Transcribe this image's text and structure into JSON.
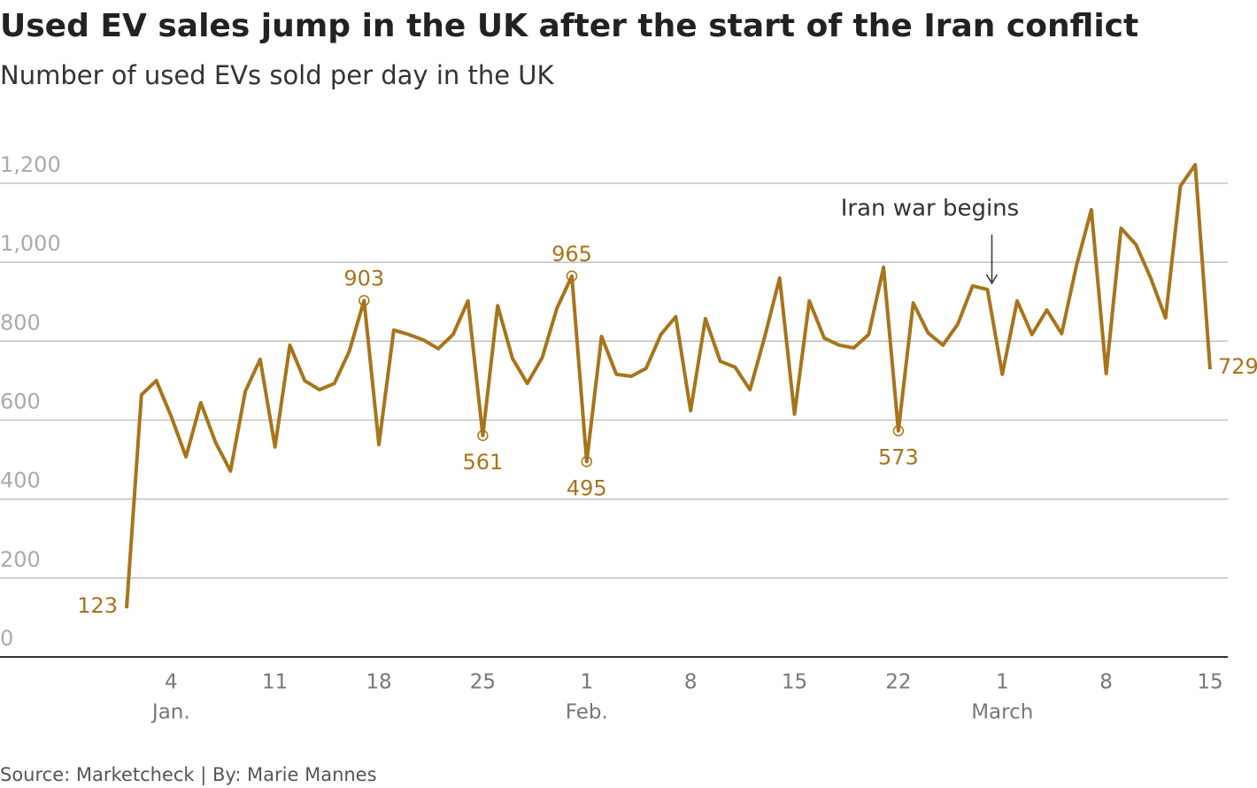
{
  "chart_data": {
    "type": "line",
    "title": "Used EV sales jump in the UK after the start of the Iran conflict",
    "subtitle": "Number of used EVs sold per day in the UK",
    "source": "Source: Marketcheck | By: Marie Mannes",
    "x": [
      1,
      2,
      3,
      4,
      5,
      6,
      7,
      8,
      9,
      10,
      11,
      12,
      13,
      14,
      15,
      16,
      17,
      18,
      19,
      20,
      21,
      22,
      23,
      24,
      25,
      26,
      27,
      28,
      29,
      30,
      31,
      32,
      33,
      34,
      35,
      36,
      37,
      38,
      39,
      40,
      41,
      42,
      43,
      44,
      45,
      46,
      47,
      48,
      49,
      50,
      51,
      52,
      53,
      54,
      55,
      56,
      57,
      58,
      59,
      60,
      61,
      62,
      63,
      64,
      65,
      66,
      67,
      68,
      69,
      70,
      71,
      72,
      73,
      74
    ],
    "series": [
      {
        "name": "Used EVs sold",
        "color": "#a8741a",
        "values": [
          123,
          664,
          700,
          610,
          507,
          644,
          543,
          471,
          673,
          754,
          532,
          790,
          700,
          677,
          693,
          774,
          903,
          538,
          828,
          817,
          803,
          781,
          817,
          902,
          561,
          890,
          756,
          693,
          758,
          884,
          965,
          495,
          812,
          716,
          711,
          731,
          817,
          862,
          624,
          857,
          749,
          734,
          677,
          812,
          960,
          615,
          902,
          808,
          790,
          783,
          817,
          987,
          573,
          897,
          821,
          790,
          843,
          940,
          931,
          716,
          902,
          817,
          879,
          819,
          992,
          1133,
          718,
          1086,
          1045,
          960,
          859,
          1193,
          1247,
          729
        ]
      }
    ],
    "labeled_points": [
      0,
      16,
      24,
      30,
      31,
      52,
      73
    ],
    "xlim": [
      1,
      74
    ],
    "xticks": [
      {
        "value": 4,
        "label": "4"
      },
      {
        "value": 11,
        "label": "11"
      },
      {
        "value": 18,
        "label": "18"
      },
      {
        "value": 25,
        "label": "25"
      },
      {
        "value": 32,
        "label": "1"
      },
      {
        "value": 39,
        "label": "8"
      },
      {
        "value": 46,
        "label": "15"
      },
      {
        "value": 53,
        "label": "22"
      },
      {
        "value": 60,
        "label": "1"
      },
      {
        "value": 67,
        "label": "8"
      },
      {
        "value": 74,
        "label": "15"
      }
    ],
    "month_labels": [
      {
        "value": 4,
        "label": "Jan."
      },
      {
        "value": 32,
        "label": "Feb."
      },
      {
        "value": 60,
        "label": "March"
      }
    ],
    "ylim": [
      0,
      1200
    ],
    "yticks": [
      0,
      200,
      400,
      600,
      800,
      {
        "value": 1000,
        "label": "1,000"
      },
      {
        "value": 1200,
        "label": "1,200"
      }
    ],
    "grid": true,
    "annotation": {
      "text": "Iran war begins",
      "x": 59
    }
  }
}
